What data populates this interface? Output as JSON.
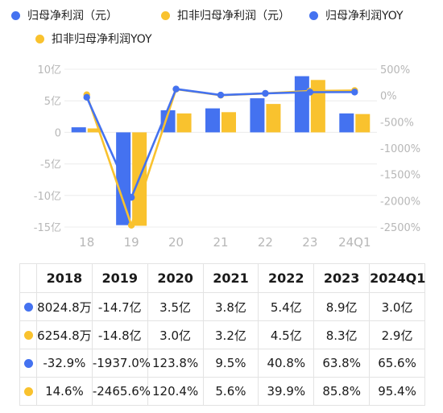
{
  "legend": [
    {
      "label": "归母净利润（元）",
      "color": "#4472f0"
    },
    {
      "label": "扣非归母净利润（元）",
      "color": "#f9c22e"
    },
    {
      "label": "归母净利润YOY",
      "color": "#4472f0"
    },
    {
      "label": "扣非归母净利润YOY",
      "color": "#f9c22e"
    }
  ],
  "chart_data": {
    "type": "bar",
    "categories": [
      "18",
      "19",
      "20",
      "21",
      "22",
      "23",
      "24Q1"
    ],
    "series": [
      {
        "name": "归母净利润（元）",
        "kind": "bar",
        "axis": "left",
        "color": "#4472f0",
        "values": [
          0.80248,
          -14.7,
          3.5,
          3.8,
          5.4,
          8.9,
          3.0
        ]
      },
      {
        "name": "扣非归母净利润（元）",
        "kind": "bar",
        "axis": "left",
        "color": "#f9c22e",
        "values": [
          0.62548,
          -14.8,
          3.0,
          3.2,
          4.5,
          8.3,
          2.9
        ]
      },
      {
        "name": "归母净利润YOY",
        "kind": "line",
        "axis": "right",
        "color": "#4472f0",
        "values": [
          -32.9,
          -1937.0,
          123.8,
          9.5,
          40.8,
          63.8,
          65.6
        ]
      },
      {
        "name": "扣非归母净利润YOY",
        "kind": "line",
        "axis": "right",
        "color": "#f9c22e",
        "values": [
          14.6,
          -2465.6,
          120.4,
          5.6,
          39.9,
          85.8,
          95.4
        ]
      }
    ],
    "y_left": {
      "min": -15,
      "max": 10,
      "ticks": [
        10,
        5,
        0,
        -5,
        -10,
        -15
      ],
      "tick_labels": [
        "10亿",
        "5亿",
        "0",
        "-5亿",
        "-10亿",
        "-15亿"
      ]
    },
    "y_right": {
      "min": -2500,
      "max": 500,
      "ticks": [
        500,
        0,
        -500,
        -1000,
        -1500,
        -2000,
        -2500
      ],
      "tick_labels": [
        "500%",
        "0%",
        "-500%",
        "-1000%",
        "-1500%",
        "-2000%",
        "-2500%"
      ]
    }
  },
  "table": {
    "headers": [
      "2018",
      "2019",
      "2020",
      "2021",
      "2022",
      "2023",
      "2024Q1"
    ],
    "rows": [
      {
        "color": "#4472f0",
        "cells": [
          "8024.8万",
          "-14.7亿",
          "3.5亿",
          "3.8亿",
          "5.4亿",
          "8.9亿",
          "3.0亿"
        ]
      },
      {
        "color": "#f9c22e",
        "cells": [
          "6254.8万",
          "-14.8亿",
          "3.0亿",
          "3.2亿",
          "4.5亿",
          "8.3亿",
          "2.9亿"
        ]
      },
      {
        "color": "#4472f0",
        "cells": [
          "-32.9%",
          "-1937.0%",
          "123.8%",
          "9.5%",
          "40.8%",
          "63.8%",
          "65.6%"
        ]
      },
      {
        "color": "#f9c22e",
        "cells": [
          "14.6%",
          "-2465.6%",
          "120.4%",
          "5.6%",
          "39.9%",
          "85.8%",
          "95.4%"
        ]
      }
    ]
  }
}
